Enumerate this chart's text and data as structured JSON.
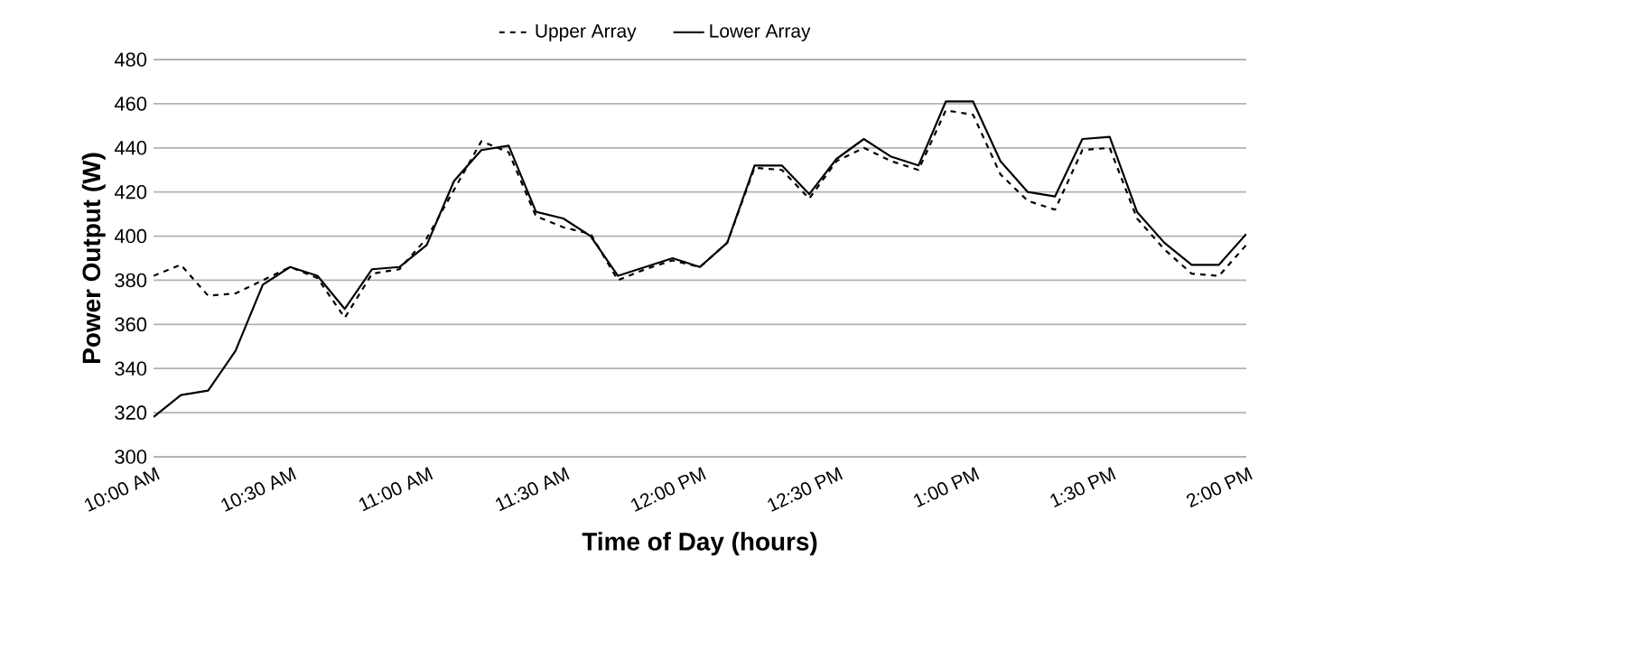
{
  "chart_data": {
    "type": "line",
    "xlabel": "Time of Day (hours)",
    "ylabel": "Power Output (W)",
    "x": [
      10.0,
      10.1,
      10.2,
      10.3,
      10.4,
      10.5,
      10.6,
      10.7,
      10.8,
      10.9,
      11.0,
      11.1,
      11.2,
      11.3,
      11.4,
      11.5,
      11.6,
      11.7,
      11.8,
      11.9,
      12.0,
      12.1,
      12.2,
      12.3,
      12.4,
      12.5,
      12.6,
      12.7,
      12.8,
      12.9,
      13.0,
      13.1,
      13.2,
      13.3,
      13.4,
      13.5,
      13.6,
      13.7,
      13.8,
      13.9,
      14.0
    ],
    "series": [
      {
        "name": "Upper Array",
        "color": "#000000",
        "line_style": "dashed",
        "values": [
          382,
          387,
          373,
          374,
          380,
          386,
          381,
          363,
          383,
          385,
          399,
          421,
          443,
          438,
          409,
          404,
          401,
          380,
          385,
          389,
          386,
          397,
          431,
          430,
          417,
          434,
          440,
          434,
          430,
          457,
          455,
          428,
          416,
          412,
          439,
          440,
          408,
          394,
          383,
          382,
          396
        ]
      },
      {
        "name": "Lower Array",
        "color": "#000000",
        "line_style": "solid",
        "values": [
          318,
          328,
          330,
          348,
          378,
          386,
          382,
          367,
          385,
          386,
          396,
          425,
          439,
          441,
          411,
          408,
          400,
          382,
          386,
          390,
          386,
          397,
          432,
          432,
          419,
          435,
          444,
          436,
          432,
          461,
          461,
          434,
          420,
          418,
          444,
          445,
          411,
          397,
          387,
          387,
          401
        ]
      }
    ],
    "xlim": [
      10,
      14
    ],
    "xticks": [
      {
        "value": 10,
        "label": "10:00 AM"
      },
      {
        "value": 10.5,
        "label": "10:30 AM"
      },
      {
        "value": 11,
        "label": "11:00 AM"
      },
      {
        "value": 11.5,
        "label": "11:30 AM"
      },
      {
        "value": 12,
        "label": "12:00 PM"
      },
      {
        "value": 12.5,
        "label": "12:30 PM"
      },
      {
        "value": 13,
        "label": "1:00 PM"
      },
      {
        "value": 13.5,
        "label": "1:30 PM"
      },
      {
        "value": 14,
        "label": "2:00 PM"
      }
    ],
    "ylim": [
      300,
      480
    ],
    "yticks": [
      300,
      320,
      340,
      360,
      380,
      400,
      420,
      440,
      460,
      480
    ],
    "grid": "y",
    "legend": "top",
    "marker": "none"
  }
}
